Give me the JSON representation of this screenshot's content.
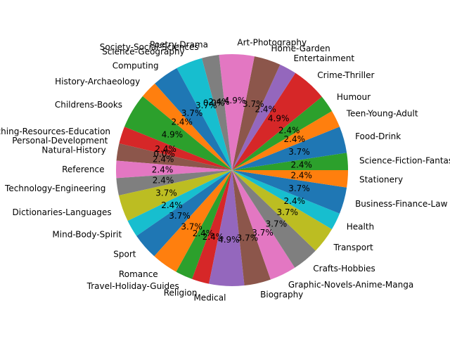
{
  "chart_data": {
    "type": "pie",
    "title": "",
    "start_angle_deg": 0,
    "direction": "counterclockwise",
    "categories": [
      "Science-Fiction-Fantasy-Horror",
      "Food-Drink",
      "Teen-Young-Adult",
      "Humour",
      "Crime-Thriller",
      "Entertainment",
      "Home-Garden",
      "Art-Photography",
      "Poetry-Drama",
      "Society-Social-Sciences",
      "Science-Geography",
      "Computing",
      "History-Archaeology",
      "Childrens-Books",
      "Teaching-Resources-Education",
      "Personal-Development",
      "Natural-History",
      "Reference",
      "Technology-Engineering",
      "Dictionaries-Languages",
      "Mind-Body-Spirit",
      "Sport",
      "Romance",
      "Travel-Holiday-Guides",
      "Religion",
      "Medical",
      "Biography",
      "Graphic-Novels-Anime-Manga",
      "Crafts-Hobbies",
      "Transport",
      "Health",
      "Business-Finance-Law",
      "Stationery"
    ],
    "values": [
      2.4,
      3.7,
      2.4,
      2.4,
      4.9,
      2.4,
      3.7,
      4.9,
      2.4,
      0.0,
      3.7,
      3.7,
      2.4,
      4.9,
      2.4,
      0.0,
      2.4,
      2.4,
      2.4,
      3.7,
      2.4,
      3.7,
      3.7,
      2.4,
      2.4,
      4.9,
      3.7,
      3.7,
      3.7,
      3.7,
      2.4,
      3.7,
      2.4
    ],
    "percent_labels": [
      "2.4%",
      "3.7%",
      "2.4%",
      "2.4%",
      "4.9%",
      "2.4%",
      "3.7%",
      "4.9%",
      "2.4%",
      "0.0%",
      "3.7%",
      "3.7%",
      "2.4%",
      "4.9%",
      "2.4%",
      "0.0%",
      "2.4%",
      "2.4%",
      "2.4%",
      "3.7%",
      "2.4%",
      "3.7%",
      "3.7%",
      "2.4%",
      "2.4%",
      "4.9%",
      "3.7%",
      "3.7%",
      "3.7%",
      "3.7%",
      "2.4%",
      "3.7%",
      "2.4%"
    ],
    "colors": [
      "#2ca02c",
      "#1f77b4",
      "#ff7f0e",
      "#2ca02c",
      "#d62728",
      "#9467bd",
      "#8c564b",
      "#e377c2",
      "#7f7f7f",
      "#bcbd22",
      "#17becf",
      "#1f77b4",
      "#ff7f0e",
      "#2ca02c",
      "#d62728",
      "#9467bd",
      "#8c564b",
      "#e377c2",
      "#7f7f7f",
      "#bcbd22",
      "#17becf",
      "#1f77b4",
      "#ff7f0e",
      "#2ca02c",
      "#d62728",
      "#9467bd",
      "#8c564b",
      "#e377c2",
      "#7f7f7f",
      "#bcbd22",
      "#17becf",
      "#1f77b4",
      "#ff7f0e"
    ]
  }
}
